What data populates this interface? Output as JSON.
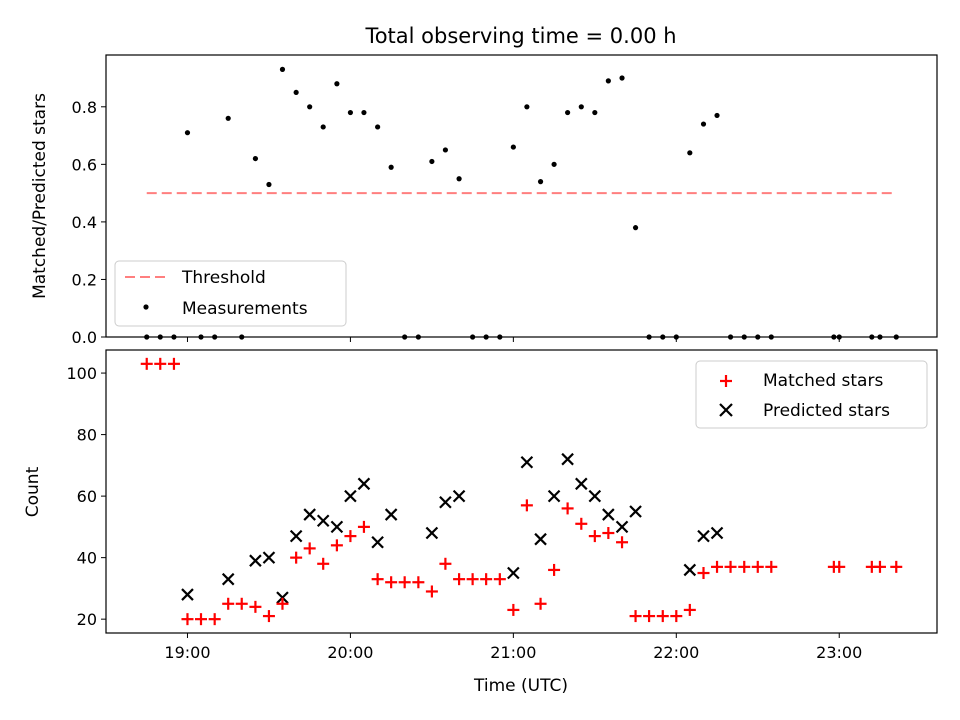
{
  "chart_data": {
    "title": "Total observing time = 0.00 h",
    "xlabel": "Time (UTC)",
    "x_tick_labels": [
      "19:00",
      "20:00",
      "21:00",
      "22:00",
      "23:00"
    ],
    "x_ticks_hours": [
      19,
      20,
      21,
      22,
      23
    ],
    "xlim_hours": [
      18.5,
      23.6
    ],
    "panels": [
      {
        "type": "scatter",
        "ylabel": "Matched/Predicted stars",
        "ylim": [
          0,
          0.98
        ],
        "y_ticks": [
          0.0,
          0.2,
          0.4,
          0.6,
          0.8
        ],
        "y_tick_labels": [
          "0.0",
          "0.2",
          "0.4",
          "0.6",
          "0.8"
        ],
        "legend_position": "lower-left",
        "threshold": {
          "name": "Threshold",
          "value": 0.5,
          "x_range_hours": [
            18.75,
            23.35
          ],
          "color": "#ff7f7f",
          "style": "dashed"
        },
        "measurements": {
          "name": "Measurements",
          "color": "#000000",
          "points": [
            [
              18.75,
              0.0
            ],
            [
              18.833,
              0.0
            ],
            [
              18.917,
              0.0
            ],
            [
              19.0,
              0.71
            ],
            [
              19.083,
              0.0
            ],
            [
              19.167,
              0.0
            ],
            [
              19.25,
              0.76
            ],
            [
              19.333,
              0.0
            ],
            [
              19.417,
              0.62
            ],
            [
              19.5,
              0.53
            ],
            [
              19.583,
              0.93
            ],
            [
              19.667,
              0.85
            ],
            [
              19.75,
              0.8
            ],
            [
              19.833,
              0.73
            ],
            [
              19.917,
              0.88
            ],
            [
              20.0,
              0.78
            ],
            [
              20.083,
              0.78
            ],
            [
              20.167,
              0.73
            ],
            [
              20.25,
              0.59
            ],
            [
              20.333,
              0.0
            ],
            [
              20.417,
              0.0
            ],
            [
              20.5,
              0.61
            ],
            [
              20.583,
              0.65
            ],
            [
              20.667,
              0.55
            ],
            [
              20.75,
              0.0
            ],
            [
              20.833,
              0.0
            ],
            [
              20.917,
              0.0
            ],
            [
              21.0,
              0.66
            ],
            [
              21.083,
              0.8
            ],
            [
              21.167,
              0.54
            ],
            [
              21.25,
              0.6
            ],
            [
              21.333,
              0.78
            ],
            [
              21.417,
              0.8
            ],
            [
              21.5,
              0.78
            ],
            [
              21.583,
              0.89
            ],
            [
              21.667,
              0.9
            ],
            [
              21.75,
              0.38
            ],
            [
              21.833,
              0.0
            ],
            [
              21.917,
              0.0
            ],
            [
              22.0,
              0.0
            ],
            [
              22.083,
              0.64
            ],
            [
              22.167,
              0.74
            ],
            [
              22.25,
              0.77
            ],
            [
              22.333,
              0.0
            ],
            [
              22.417,
              0.0
            ],
            [
              22.5,
              0.0
            ],
            [
              22.583,
              0.0
            ],
            [
              22.967,
              0.0
            ],
            [
              23.0,
              0.0
            ],
            [
              23.2,
              0.0
            ],
            [
              23.25,
              0.0
            ],
            [
              23.35,
              0.0
            ]
          ]
        }
      },
      {
        "type": "scatter",
        "ylabel": "Count",
        "ylim": [
          15.5,
          107.5
        ],
        "y_ticks": [
          20,
          40,
          60,
          80,
          100
        ],
        "y_tick_labels": [
          "20",
          "40",
          "60",
          "80",
          "100"
        ],
        "legend_position": "upper-right",
        "series": [
          {
            "name": "Matched stars",
            "marker": "+",
            "color": "#ff0000",
            "points": [
              [
                18.75,
                103
              ],
              [
                18.833,
                103
              ],
              [
                18.917,
                103
              ],
              [
                19.0,
                20
              ],
              [
                19.083,
                20
              ],
              [
                19.167,
                20
              ],
              [
                19.25,
                25
              ],
              [
                19.333,
                25
              ],
              [
                19.417,
                24
              ],
              [
                19.5,
                21
              ],
              [
                19.583,
                25
              ],
              [
                19.667,
                40
              ],
              [
                19.75,
                43
              ],
              [
                19.833,
                38
              ],
              [
                19.917,
                44
              ],
              [
                20.0,
                47
              ],
              [
                20.083,
                50
              ],
              [
                20.167,
                33
              ],
              [
                20.25,
                32
              ],
              [
                20.333,
                32
              ],
              [
                20.417,
                32
              ],
              [
                20.5,
                29
              ],
              [
                20.583,
                38
              ],
              [
                20.667,
                33
              ],
              [
                20.75,
                33
              ],
              [
                20.833,
                33
              ],
              [
                20.917,
                33
              ],
              [
                21.0,
                23
              ],
              [
                21.083,
                57
              ],
              [
                21.167,
                25
              ],
              [
                21.25,
                36
              ],
              [
                21.333,
                56
              ],
              [
                21.417,
                51
              ],
              [
                21.5,
                47
              ],
              [
                21.583,
                48
              ],
              [
                21.667,
                45
              ],
              [
                21.75,
                21
              ],
              [
                21.833,
                21
              ],
              [
                21.917,
                21
              ],
              [
                22.0,
                21
              ],
              [
                22.083,
                23
              ],
              [
                22.167,
                35
              ],
              [
                22.25,
                37
              ],
              [
                22.333,
                37
              ],
              [
                22.417,
                37
              ],
              [
                22.5,
                37
              ],
              [
                22.583,
                37
              ],
              [
                22.967,
                37
              ],
              [
                23.0,
                37
              ],
              [
                23.2,
                37
              ],
              [
                23.25,
                37
              ],
              [
                23.35,
                37
              ]
            ]
          },
          {
            "name": "Predicted stars",
            "marker": "x",
            "color": "#000000",
            "points": [
              [
                19.0,
                28
              ],
              [
                19.25,
                33
              ],
              [
                19.417,
                39
              ],
              [
                19.5,
                40
              ],
              [
                19.583,
                27
              ],
              [
                19.667,
                47
              ],
              [
                19.75,
                54
              ],
              [
                19.833,
                52
              ],
              [
                19.917,
                50
              ],
              [
                20.0,
                60
              ],
              [
                20.083,
                64
              ],
              [
                20.167,
                45
              ],
              [
                20.25,
                54
              ],
              [
                20.5,
                48
              ],
              [
                20.583,
                58
              ],
              [
                20.667,
                60
              ],
              [
                21.0,
                35
              ],
              [
                21.083,
                71
              ],
              [
                21.167,
                46
              ],
              [
                21.25,
                60
              ],
              [
                21.333,
                72
              ],
              [
                21.417,
                64
              ],
              [
                21.5,
                60
              ],
              [
                21.583,
                54
              ],
              [
                21.667,
                50
              ],
              [
                21.75,
                55
              ],
              [
                22.083,
                36
              ],
              [
                22.167,
                47
              ],
              [
                22.25,
                48
              ]
            ]
          }
        ]
      }
    ]
  }
}
